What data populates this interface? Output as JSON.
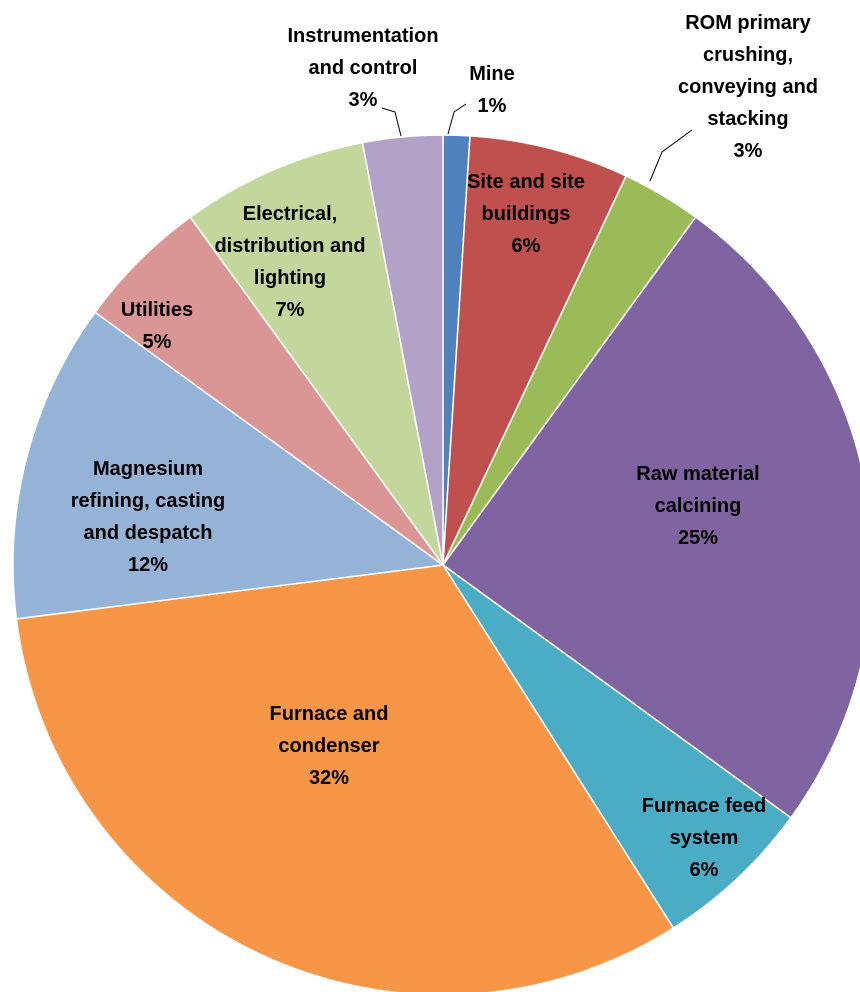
{
  "chart_data": {
    "type": "pie",
    "title": "",
    "start_angle_deg": 0,
    "direction": "clockwise",
    "slices": [
      {
        "label_lines": [
          "Mine"
        ],
        "value": 1,
        "value_label": "1%",
        "color": "#4F81BD"
      },
      {
        "label_lines": [
          "Site and site",
          "buildings"
        ],
        "value": 6,
        "value_label": "6%",
        "color": "#C0504D"
      },
      {
        "label_lines": [
          "ROM primary",
          "crushing,",
          "conveying and",
          "stacking"
        ],
        "value": 3,
        "value_label": "3%",
        "color": "#9BBB59"
      },
      {
        "label_lines": [
          "Raw material",
          "calcining"
        ],
        "value": 25,
        "value_label": "25%",
        "color": "#8064A2"
      },
      {
        "label_lines": [
          "Furnace feed",
          "system"
        ],
        "value": 6,
        "value_label": "6%",
        "color": "#4BACC6"
      },
      {
        "label_lines": [
          "Furnace and",
          "condenser"
        ],
        "value": 32,
        "value_label": "32%",
        "color": "#F79646"
      },
      {
        "label_lines": [
          "Magnesium",
          "refining, casting",
          "and despatch"
        ],
        "value": 12,
        "value_label": "12%",
        "color": "#95B3D7"
      },
      {
        "label_lines": [
          "Utilities"
        ],
        "value": 5,
        "value_label": "5%",
        "color": "#D99694"
      },
      {
        "label_lines": [
          "Electrical,",
          "distribution and",
          "lighting"
        ],
        "value": 7,
        "value_label": "7%",
        "color": "#C3D69B"
      },
      {
        "label_lines": [
          "Instrumentation",
          "and control"
        ],
        "value": 3,
        "value_label": "3%",
        "color": "#B2A2C7"
      }
    ]
  }
}
